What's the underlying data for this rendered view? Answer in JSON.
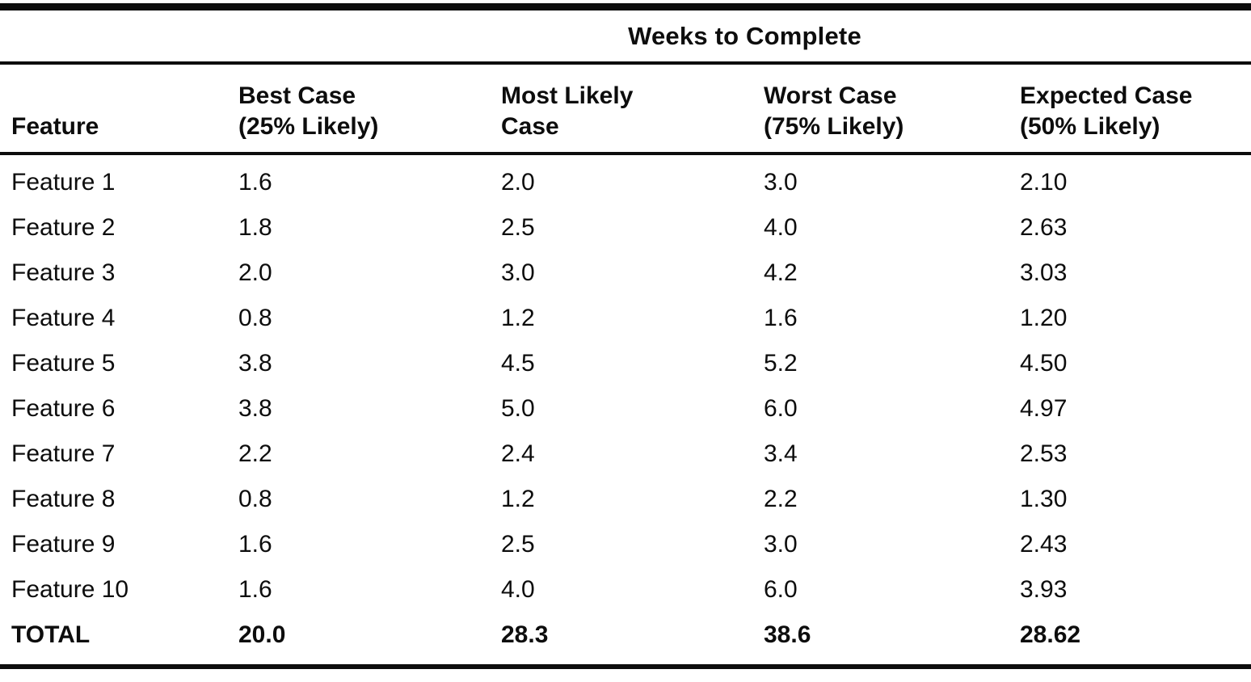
{
  "table": {
    "title": "Weeks to Complete",
    "columns": [
      {
        "line1": "Feature",
        "line2": ""
      },
      {
        "line1": "Best Case",
        "line2": "(25% Likely)"
      },
      {
        "line1": "Most Likely",
        "line2": "Case"
      },
      {
        "line1": "Worst Case",
        "line2": "(75% Likely)"
      },
      {
        "line1": "Expected Case",
        "line2": "(50% Likely)"
      }
    ],
    "rows": [
      {
        "feature": "Feature 1",
        "best": "1.6",
        "likely": "2.0",
        "worst": "3.0",
        "expected": "2.10"
      },
      {
        "feature": "Feature 2",
        "best": "1.8",
        "likely": "2.5",
        "worst": "4.0",
        "expected": "2.63"
      },
      {
        "feature": "Feature 3",
        "best": "2.0",
        "likely": "3.0",
        "worst": "4.2",
        "expected": "3.03"
      },
      {
        "feature": "Feature 4",
        "best": "0.8",
        "likely": "1.2",
        "worst": "1.6",
        "expected": "1.20"
      },
      {
        "feature": "Feature 5",
        "best": "3.8",
        "likely": "4.5",
        "worst": "5.2",
        "expected": "4.50"
      },
      {
        "feature": "Feature 6",
        "best": "3.8",
        "likely": "5.0",
        "worst": "6.0",
        "expected": "4.97"
      },
      {
        "feature": "Feature 7",
        "best": "2.2",
        "likely": "2.4",
        "worst": "3.4",
        "expected": "2.53"
      },
      {
        "feature": "Feature 8",
        "best": "0.8",
        "likely": "1.2",
        "worst": "2.2",
        "expected": "1.30"
      },
      {
        "feature": "Feature 9",
        "best": "1.6",
        "likely": "2.5",
        "worst": "3.0",
        "expected": "2.43"
      },
      {
        "feature": "Feature 10",
        "best": "1.6",
        "likely": "4.0",
        "worst": "6.0",
        "expected": "3.93"
      }
    ],
    "total": {
      "feature": "TOTAL",
      "best": "20.0",
      "likely": "28.3",
      "worst": "38.6",
      "expected": "28.62"
    },
    "colors": {
      "ink": "#0d0d0d",
      "paper": "#ffffff"
    }
  }
}
